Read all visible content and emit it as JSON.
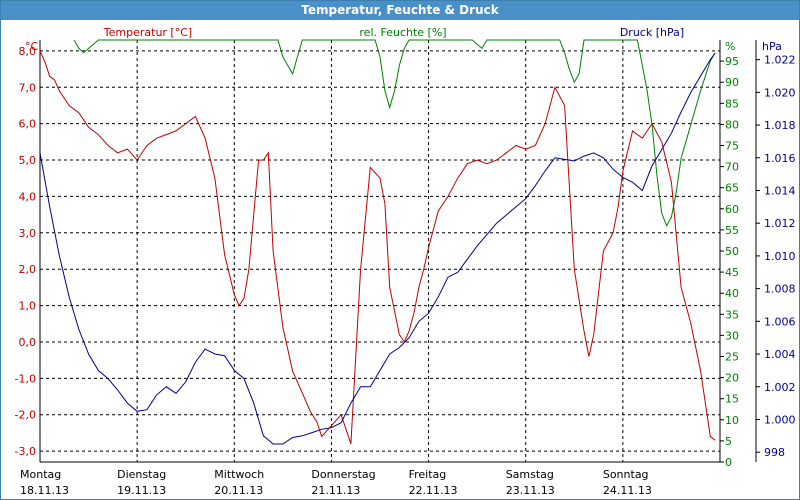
{
  "window": {
    "title": "Temperatur, Feuchte & Druck"
  },
  "chart_data": {
    "type": "line",
    "title": "Temperatur, Feuchte & Druck",
    "grid": true,
    "colors": {
      "temperature": "#c00000",
      "humidity": "#008000",
      "pressure": "#00008b",
      "grid": "#000000"
    },
    "x_labels": [
      {
        "day": "Montag",
        "date": "18.11.13",
        "pos": 0
      },
      {
        "day": "Dienstag",
        "date": "19.11.13",
        "pos": 1
      },
      {
        "day": "Mittwoch",
        "date": "20.11.13",
        "pos": 2
      },
      {
        "day": "Donnerstag",
        "date": "21.11.13",
        "pos": 3
      },
      {
        "day": "Freitag",
        "date": "22.11.13",
        "pos": 4
      },
      {
        "day": "Samstag",
        "date": "23.11.13",
        "pos": 5
      },
      {
        "day": "Sonntag",
        "date": "24.11.13",
        "pos": 6
      }
    ],
    "xlim": [
      0,
      7
    ],
    "axes": {
      "temperature": {
        "label": "Temperatur [°C]",
        "unit": "°C",
        "ylim": [
          -3.3,
          8.3
        ],
        "ticks": [
          "8,0",
          "7,0",
          "6,0",
          "5,0",
          "4,0",
          "3,0",
          "2,0",
          "1,0",
          "0,0",
          "-1,0",
          "-2,0",
          "-3,0"
        ],
        "tick_values": [
          8,
          7,
          6,
          5,
          4,
          3,
          2,
          1,
          0,
          -1,
          -2,
          -3
        ]
      },
      "humidity": {
        "label": "rel. Feuchte [%]",
        "unit": "%",
        "ylim": [
          0,
          100
        ],
        "ticks": [
          "95",
          "90",
          "85",
          "80",
          "75",
          "70",
          "65",
          "60",
          "55",
          "50",
          "45",
          "40",
          "35",
          "30",
          "25",
          "20",
          "15",
          "10",
          "5",
          "0"
        ],
        "tick_values": [
          95,
          90,
          85,
          80,
          75,
          70,
          65,
          60,
          55,
          50,
          45,
          40,
          35,
          30,
          25,
          20,
          15,
          10,
          5,
          0
        ]
      },
      "pressure": {
        "label": "Druck [hPa]",
        "unit": "hPa",
        "ylim": [
          997.4,
          1023.2
        ],
        "ticks": [
          "1.022",
          "1.020",
          "1.018",
          "1.016",
          "1.014",
          "1.012",
          "1.010",
          "1.008",
          "1.006",
          "1.004",
          "1.002",
          "1.000",
          "998"
        ],
        "tick_values": [
          1022,
          1020,
          1018,
          1016,
          1014,
          1012,
          1010,
          1008,
          1006,
          1004,
          1002,
          1000,
          998
        ]
      }
    },
    "series": [
      {
        "key": "temperature",
        "axis": "temperature",
        "x": [
          0,
          0.05,
          0.1,
          0.15,
          0.2,
          0.3,
          0.4,
          0.5,
          0.6,
          0.7,
          0.8,
          0.9,
          1.0,
          1.1,
          1.2,
          1.3,
          1.4,
          1.5,
          1.6,
          1.7,
          1.8,
          1.9,
          2.0,
          2.05,
          2.1,
          2.15,
          2.2,
          2.25,
          2.3,
          2.35,
          2.4,
          2.5,
          2.6,
          2.7,
          2.78,
          2.85,
          2.9,
          3.0,
          3.1,
          3.2,
          3.3,
          3.4,
          3.5,
          3.55,
          3.6,
          3.7,
          3.75,
          3.8,
          3.85,
          3.9,
          3.95,
          4.0,
          4.1,
          4.2,
          4.3,
          4.4,
          4.5,
          4.6,
          4.7,
          4.8,
          4.9,
          5.0,
          5.1,
          5.2,
          5.3,
          5.4,
          5.5,
          5.6,
          5.65,
          5.7,
          5.8,
          5.9,
          5.95,
          6.0,
          6.1,
          6.2,
          6.3,
          6.4,
          6.5,
          6.6,
          6.7,
          6.8,
          6.9,
          6.95
        ],
        "y": [
          8.0,
          7.7,
          7.3,
          7.2,
          6.9,
          6.5,
          6.3,
          5.9,
          5.7,
          5.4,
          5.2,
          5.3,
          5.0,
          5.4,
          5.6,
          5.7,
          5.8,
          6.0,
          6.2,
          5.6,
          4.5,
          2.4,
          1.3,
          1.0,
          1.2,
          2.0,
          3.5,
          5.0,
          5.0,
          5.2,
          2.5,
          0.4,
          -0.8,
          -1.4,
          -1.9,
          -2.2,
          -2.6,
          -2.3,
          -2.0,
          -2.8,
          2.0,
          4.8,
          4.5,
          3.8,
          1.5,
          0.2,
          0.0,
          0.3,
          0.8,
          1.5,
          2.0,
          2.6,
          3.6,
          4.0,
          4.5,
          4.9,
          5.0,
          4.9,
          5.0,
          5.2,
          5.4,
          5.3,
          5.4,
          6.0,
          7.0,
          6.5,
          2.0,
          0.3,
          -0.4,
          0.2,
          2.5,
          3.0,
          3.7,
          4.7,
          5.8,
          5.6,
          6.0,
          5.5,
          4.4,
          1.5,
          0.5,
          -0.8,
          -2.6,
          -2.7
        ]
      },
      {
        "key": "humidity",
        "axis": "humidity",
        "x": [
          0.35,
          0.4,
          0.45,
          0.5,
          0.55,
          0.6,
          2.45,
          2.5,
          2.55,
          2.6,
          2.65,
          2.7,
          3.45,
          3.5,
          3.55,
          3.6,
          3.65,
          3.7,
          3.75,
          3.8,
          4.45,
          4.5,
          4.55,
          4.6,
          5.35,
          5.4,
          5.45,
          5.5,
          5.55,
          5.6,
          6.15,
          6.2,
          6.25,
          6.3,
          6.35,
          6.4,
          6.45,
          6.5,
          6.55,
          6.6,
          6.7,
          6.8,
          6.9,
          6.95
        ],
        "y": [
          100,
          98,
          97,
          98,
          99,
          100,
          100,
          96,
          94,
          92,
          96,
          100,
          100,
          96,
          88,
          84,
          88,
          94,
          98,
          100,
          100,
          99,
          98,
          100,
          100,
          97,
          93,
          90,
          92,
          100,
          100,
          94,
          88,
          80,
          68,
          59,
          56,
          58,
          64,
          72,
          80,
          88,
          95,
          97
        ]
      },
      {
        "key": "pressure",
        "axis": "pressure",
        "x": [
          0,
          0.1,
          0.2,
          0.3,
          0.4,
          0.5,
          0.6,
          0.7,
          0.8,
          0.9,
          1.0,
          1.1,
          1.2,
          1.3,
          1.4,
          1.5,
          1.6,
          1.7,
          1.8,
          1.9,
          2.0,
          2.1,
          2.2,
          2.3,
          2.4,
          2.5,
          2.6,
          2.7,
          2.8,
          2.9,
          3.0,
          3.1,
          3.2,
          3.3,
          3.4,
          3.5,
          3.6,
          3.7,
          3.8,
          3.9,
          4.0,
          4.1,
          4.2,
          4.3,
          4.4,
          4.5,
          4.6,
          4.7,
          4.8,
          4.9,
          5.0,
          5.1,
          5.2,
          5.3,
          5.4,
          5.5,
          5.6,
          5.7,
          5.8,
          5.9,
          6.0,
          6.1,
          6.2,
          6.3,
          6.4,
          6.5,
          6.6,
          6.7,
          6.8,
          6.9,
          6.95
        ],
        "y": [
          1016.3,
          1013.0,
          1010.0,
          1007.5,
          1005.5,
          1004.0,
          1003.0,
          1002.5,
          1001.8,
          1001.0,
          1000.5,
          1000.6,
          1001.5,
          1002.0,
          1001.6,
          1002.3,
          1003.5,
          1004.3,
          1004.0,
          1003.9,
          1003.0,
          1002.5,
          1001.0,
          999.0,
          998.5,
          998.5,
          998.9,
          999.0,
          999.2,
          999.4,
          999.5,
          999.8,
          1001.0,
          1002.0,
          1002.0,
          1003.0,
          1004.0,
          1004.4,
          1005.0,
          1006.0,
          1006.5,
          1007.5,
          1008.7,
          1009.0,
          1009.8,
          1010.6,
          1011.3,
          1012.0,
          1012.5,
          1013.0,
          1013.5,
          1014.3,
          1015.2,
          1016.0,
          1015.9,
          1015.8,
          1016.1,
          1016.3,
          1016.0,
          1015.3,
          1014.8,
          1014.5,
          1014.0,
          1015.5,
          1016.5,
          1017.5,
          1018.8,
          1020.0,
          1021.0,
          1022.0,
          1022.4
        ]
      }
    ]
  }
}
